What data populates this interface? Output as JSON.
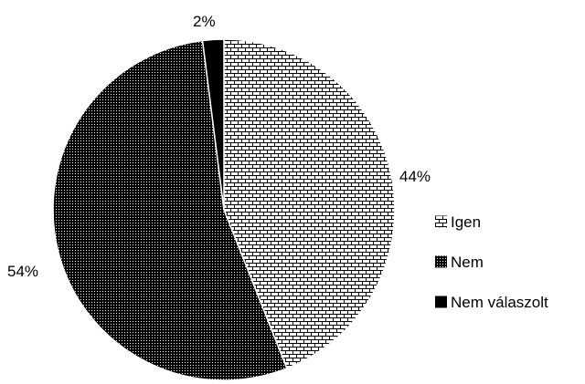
{
  "chart_data": {
    "type": "pie",
    "title": "",
    "slices": [
      {
        "label": "Igen",
        "value": 44,
        "display": "44%",
        "pattern": "brick"
      },
      {
        "label": "Nem",
        "value": 54,
        "display": "54%",
        "pattern": "dots"
      },
      {
        "label": "Nem válaszolt",
        "value": 2,
        "display": "2%",
        "pattern": "solid"
      }
    ],
    "legend_placement": "right",
    "start_angle_deg": 0,
    "direction": "clockwise",
    "colors": {
      "foreground": "#000000",
      "background": "#ffffff"
    }
  }
}
